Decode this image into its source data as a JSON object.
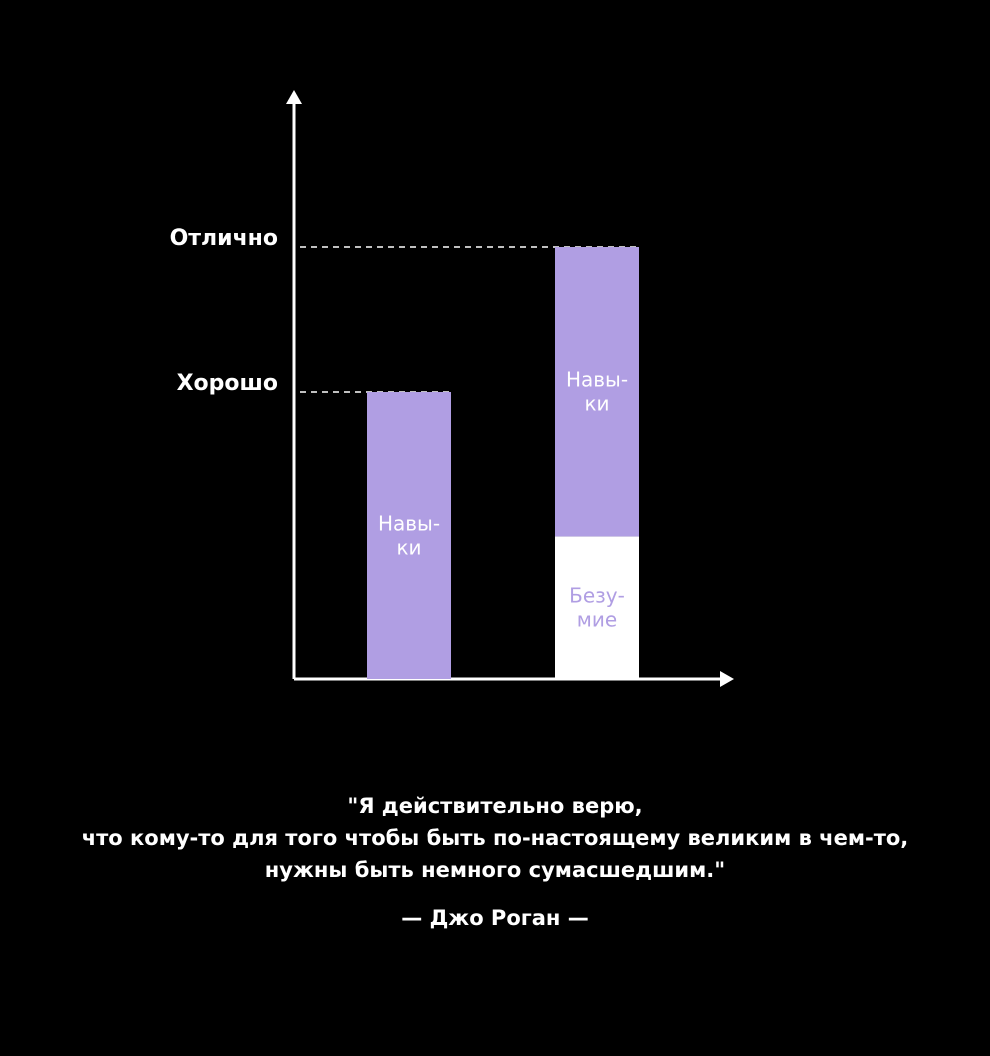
{
  "chart_data": {
    "type": "bar",
    "stacked": true,
    "levels": [
      {
        "label": "Хорошо"
      },
      {
        "label": "Отлично"
      }
    ],
    "bars": [
      {
        "segments": [
          {
            "label_lines": [
              "Навы-",
              "ки"
            ],
            "fraction": 1.0,
            "color": "#b09ee3",
            "text_color": "#ffffff"
          }
        ],
        "level": "Хорошо"
      },
      {
        "segments": [
          {
            "label_lines": [
              "Безу-",
              "мие"
            ],
            "fraction": 0.33,
            "color": "#ffffff",
            "text_color": "#b09ee3"
          },
          {
            "label_lines": [
              "Навы-",
              "ки"
            ],
            "fraction": 0.67,
            "color": "#b09ee3",
            "text_color": "#ffffff"
          }
        ],
        "level": "Отлично"
      }
    ],
    "axis_color": "#ffffff",
    "grid": false
  },
  "quote": {
    "lines": [
      "\"Я действительно верю,",
      "что кому-то для того чтобы быть по-настоящему великим в чем-то,",
      "нужны быть немного сумасшедшим.\""
    ],
    "author": "— Джо Роган —"
  }
}
